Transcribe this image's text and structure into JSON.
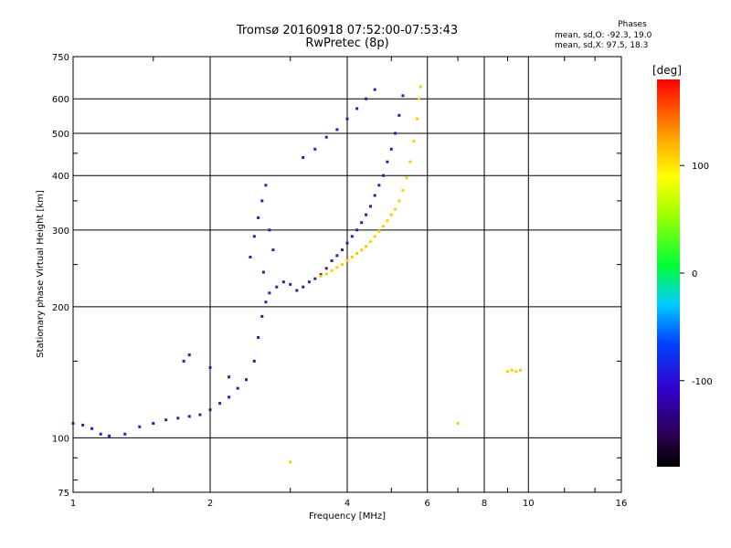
{
  "header": {
    "title": "Tromsø 20160918 07:52:00-07:53:43",
    "subtitle": "RwPretec (8p)"
  },
  "stats": {
    "title": "Phases",
    "o_mode": "mean, sd,O: -92.3, 19.0",
    "x_mode": "mean, sd,X:  97.5, 18.3"
  },
  "chart_data": {
    "type": "scatter",
    "xlabel": "Frequency [MHz]",
    "ylabel": "Stationary phase Virtual Height [km]",
    "x_scale": "log",
    "y_scale": "log",
    "xlim": [
      1,
      16
    ],
    "ylim": [
      75,
      750
    ],
    "x_ticks": [
      1,
      2,
      4,
      6,
      8,
      10,
      16
    ],
    "y_ticks": [
      75,
      100,
      200,
      300,
      400,
      500,
      600,
      750
    ],
    "grid": true,
    "colorbar": {
      "label": "[deg]",
      "range": [
        -180,
        180
      ],
      "ticks": [
        100,
        0,
        -100
      ]
    },
    "series": [
      {
        "mode": "O",
        "phase_deg": -92.3,
        "points": [
          [
            1.0,
            108
          ],
          [
            1.05,
            107
          ],
          [
            1.1,
            105
          ],
          [
            1.15,
            102
          ],
          [
            1.2,
            101
          ],
          [
            1.3,
            102
          ],
          [
            1.4,
            106
          ],
          [
            1.5,
            108
          ],
          [
            1.6,
            110
          ],
          [
            1.7,
            111
          ],
          [
            1.8,
            112
          ],
          [
            1.9,
            113
          ],
          [
            2.0,
            116
          ],
          [
            2.1,
            120
          ],
          [
            2.2,
            124
          ],
          [
            2.3,
            130
          ],
          [
            2.4,
            136
          ],
          [
            2.5,
            150
          ],
          [
            2.55,
            170
          ],
          [
            2.6,
            190
          ],
          [
            2.65,
            205
          ],
          [
            2.7,
            215
          ],
          [
            2.8,
            222
          ],
          [
            2.9,
            228
          ],
          [
            3.0,
            225
          ],
          [
            3.1,
            218
          ],
          [
            3.2,
            222
          ],
          [
            3.3,
            228
          ],
          [
            3.4,
            232
          ],
          [
            3.5,
            237
          ],
          [
            3.6,
            245
          ],
          [
            3.7,
            255
          ],
          [
            3.8,
            262
          ],
          [
            3.9,
            270
          ],
          [
            4.0,
            280
          ],
          [
            4.1,
            290
          ],
          [
            4.2,
            300
          ],
          [
            4.3,
            312
          ],
          [
            4.4,
            325
          ],
          [
            4.5,
            340
          ],
          [
            4.6,
            360
          ],
          [
            4.7,
            380
          ],
          [
            4.8,
            400
          ],
          [
            4.9,
            430
          ],
          [
            5.0,
            460
          ],
          [
            5.1,
            500
          ],
          [
            5.2,
            550
          ],
          [
            5.3,
            610
          ],
          [
            2.45,
            260
          ],
          [
            2.5,
            290
          ],
          [
            2.55,
            320
          ],
          [
            2.6,
            350
          ],
          [
            2.65,
            380
          ],
          [
            2.7,
            300
          ],
          [
            2.75,
            270
          ],
          [
            2.62,
            240
          ],
          [
            3.2,
            440
          ],
          [
            3.4,
            460
          ],
          [
            3.6,
            490
          ],
          [
            3.8,
            510
          ],
          [
            4.0,
            540
          ],
          [
            4.2,
            570
          ],
          [
            4.4,
            600
          ],
          [
            4.6,
            630
          ],
          [
            1.75,
            150
          ],
          [
            1.8,
            155
          ],
          [
            2.0,
            145
          ],
          [
            2.2,
            138
          ]
        ]
      },
      {
        "mode": "X",
        "phase_deg": 97.5,
        "points": [
          [
            3.5,
            235
          ],
          [
            3.6,
            238
          ],
          [
            3.7,
            242
          ],
          [
            3.8,
            246
          ],
          [
            3.9,
            250
          ],
          [
            4.0,
            255
          ],
          [
            4.1,
            260
          ],
          [
            4.2,
            265
          ],
          [
            4.3,
            270
          ],
          [
            4.4,
            275
          ],
          [
            4.5,
            282
          ],
          [
            4.6,
            290
          ],
          [
            4.7,
            298
          ],
          [
            4.8,
            306
          ],
          [
            4.9,
            315
          ],
          [
            5.0,
            325
          ],
          [
            5.1,
            335
          ],
          [
            5.2,
            350
          ],
          [
            5.3,
            370
          ],
          [
            5.4,
            395
          ],
          [
            5.5,
            430
          ],
          [
            5.6,
            480
          ],
          [
            5.7,
            540
          ],
          [
            5.75,
            600
          ],
          [
            5.8,
            640
          ],
          [
            9.0,
            142
          ],
          [
            9.2,
            143
          ],
          [
            9.4,
            142
          ],
          [
            9.6,
            143
          ],
          [
            3.0,
            88
          ],
          [
            7.0,
            108
          ]
        ]
      }
    ]
  }
}
